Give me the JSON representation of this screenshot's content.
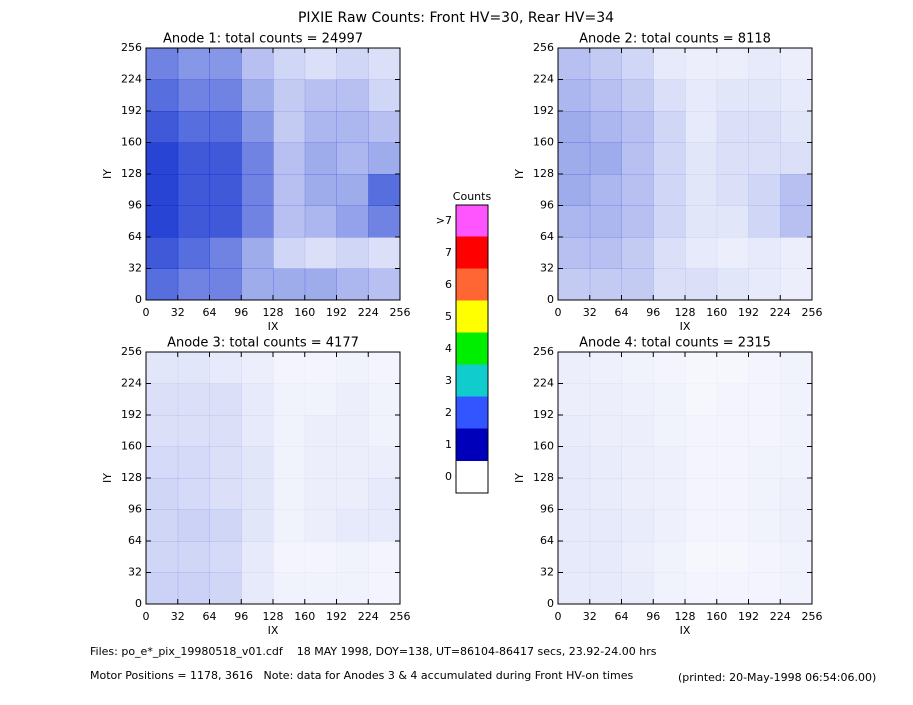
{
  "title": "PIXIE Raw Counts:  Front HV=30, Rear HV=34",
  "chart_data": [
    {
      "type": "heatmap",
      "title": "Anode 1: total counts = 24997",
      "xlabel": "IX",
      "ylabel": "IY",
      "xlim": [
        0,
        256
      ],
      "ylim": [
        0,
        256
      ],
      "xticks": [
        0,
        32,
        64,
        96,
        128,
        160,
        192,
        224,
        256
      ],
      "yticks": [
        0,
        32,
        64,
        96,
        128,
        160,
        192,
        224,
        256
      ],
      "color": "#1030d0",
      "values": [
        [
          0.6,
          0.5,
          0.5,
          0.3,
          0.2,
          0.15,
          0.2,
          0.15
        ],
        [
          0.7,
          0.6,
          0.6,
          0.4,
          0.25,
          0.3,
          0.3,
          0.2
        ],
        [
          0.8,
          0.7,
          0.7,
          0.5,
          0.25,
          0.35,
          0.35,
          0.3
        ],
        [
          0.9,
          0.8,
          0.8,
          0.6,
          0.3,
          0.4,
          0.35,
          0.4
        ],
        [
          0.9,
          0.8,
          0.8,
          0.6,
          0.3,
          0.4,
          0.4,
          0.7
        ],
        [
          0.9,
          0.8,
          0.8,
          0.6,
          0.3,
          0.35,
          0.45,
          0.6
        ],
        [
          0.8,
          0.7,
          0.6,
          0.4,
          0.2,
          0.15,
          0.2,
          0.15
        ],
        [
          0.7,
          0.6,
          0.6,
          0.4,
          0.4,
          0.4,
          0.35,
          0.3
        ]
      ]
    },
    {
      "type": "heatmap",
      "title": "Anode 2: total counts = 8118",
      "xlabel": "IX",
      "ylabel": "IY",
      "xlim": [
        0,
        256
      ],
      "ylim": [
        0,
        256
      ],
      "xticks": [
        0,
        32,
        64,
        96,
        128,
        160,
        192,
        224,
        256
      ],
      "yticks": [
        0,
        32,
        64,
        96,
        128,
        160,
        192,
        224,
        256
      ],
      "color": "#1030d0",
      "values": [
        [
          0.3,
          0.25,
          0.2,
          0.1,
          0.08,
          0.08,
          0.1,
          0.08
        ],
        [
          0.35,
          0.3,
          0.25,
          0.15,
          0.1,
          0.12,
          0.12,
          0.1
        ],
        [
          0.4,
          0.35,
          0.3,
          0.2,
          0.1,
          0.15,
          0.15,
          0.12
        ],
        [
          0.4,
          0.4,
          0.3,
          0.2,
          0.12,
          0.15,
          0.15,
          0.15
        ],
        [
          0.4,
          0.35,
          0.3,
          0.2,
          0.12,
          0.15,
          0.2,
          0.3
        ],
        [
          0.35,
          0.35,
          0.3,
          0.2,
          0.12,
          0.12,
          0.2,
          0.3
        ],
        [
          0.3,
          0.3,
          0.25,
          0.15,
          0.1,
          0.08,
          0.1,
          0.08
        ],
        [
          0.25,
          0.25,
          0.25,
          0.15,
          0.15,
          0.12,
          0.1,
          0.08
        ]
      ]
    },
    {
      "type": "heatmap",
      "title": "Anode 3: total counts = 4177",
      "xlabel": "IX",
      "ylabel": "IY",
      "xlim": [
        0,
        256
      ],
      "ylim": [
        0,
        256
      ],
      "xticks": [
        0,
        32,
        64,
        96,
        128,
        160,
        192,
        224,
        256
      ],
      "yticks": [
        0,
        32,
        64,
        96,
        128,
        160,
        192,
        224,
        256
      ],
      "color": "#1030d0",
      "values": [
        [
          0.12,
          0.12,
          0.1,
          0.08,
          0.05,
          0.05,
          0.06,
          0.05
        ],
        [
          0.15,
          0.15,
          0.15,
          0.1,
          0.06,
          0.06,
          0.08,
          0.06
        ],
        [
          0.15,
          0.15,
          0.15,
          0.1,
          0.06,
          0.08,
          0.08,
          0.06
        ],
        [
          0.18,
          0.18,
          0.15,
          0.12,
          0.06,
          0.08,
          0.08,
          0.08
        ],
        [
          0.2,
          0.18,
          0.15,
          0.12,
          0.06,
          0.08,
          0.08,
          0.1
        ],
        [
          0.2,
          0.22,
          0.2,
          0.12,
          0.06,
          0.08,
          0.1,
          0.1
        ],
        [
          0.2,
          0.2,
          0.18,
          0.1,
          0.05,
          0.05,
          0.06,
          0.05
        ],
        [
          0.22,
          0.22,
          0.2,
          0.1,
          0.06,
          0.06,
          0.06,
          0.05
        ]
      ]
    },
    {
      "type": "heatmap",
      "title": "Anode 4: total counts = 2315",
      "xlabel": "IX",
      "ylabel": "IY",
      "xlim": [
        0,
        256
      ],
      "ylim": [
        0,
        256
      ],
      "xticks": [
        0,
        32,
        64,
        96,
        128,
        160,
        192,
        224,
        256
      ],
      "yticks": [
        0,
        32,
        64,
        96,
        128,
        160,
        192,
        224,
        256
      ],
      "color": "#1030d0",
      "values": [
        [
          0.08,
          0.07,
          0.06,
          0.05,
          0.04,
          0.04,
          0.05,
          0.06
        ],
        [
          0.08,
          0.08,
          0.07,
          0.06,
          0.04,
          0.05,
          0.05,
          0.06
        ],
        [
          0.09,
          0.08,
          0.08,
          0.06,
          0.05,
          0.05,
          0.05,
          0.06
        ],
        [
          0.1,
          0.09,
          0.08,
          0.07,
          0.05,
          0.05,
          0.06,
          0.06
        ],
        [
          0.1,
          0.09,
          0.08,
          0.07,
          0.05,
          0.05,
          0.06,
          0.07
        ],
        [
          0.1,
          0.1,
          0.09,
          0.07,
          0.05,
          0.05,
          0.06,
          0.07
        ],
        [
          0.1,
          0.1,
          0.08,
          0.06,
          0.04,
          0.04,
          0.05,
          0.06
        ],
        [
          0.1,
          0.1,
          0.09,
          0.06,
          0.05,
          0.05,
          0.05,
          0.06
        ]
      ]
    }
  ],
  "colorbar": {
    "title": "Counts",
    "labels": [
      ">7",
      "7",
      "6",
      "5",
      "4",
      "3",
      "2",
      "1",
      "0"
    ],
    "colors": [
      "#ff55ff",
      "#ff0000",
      "#ff6633",
      "#ffff00",
      "#00ee00",
      "#11cccc",
      "#3355ff",
      "#0000bb",
      "#ffffff"
    ]
  },
  "footer": [
    "Files: po_e*_pix_19980518_v01.cdf    18 MAY 1998, DOY=138, UT=86104-86417 secs, 23.92-24.00 hrs",
    "Motor Positions = 1178, 3616   Note: data for Anodes 3 & 4 accumulated during Front HV-on times",
    "(printed: 20-May-1998 06:54:06.00)"
  ]
}
